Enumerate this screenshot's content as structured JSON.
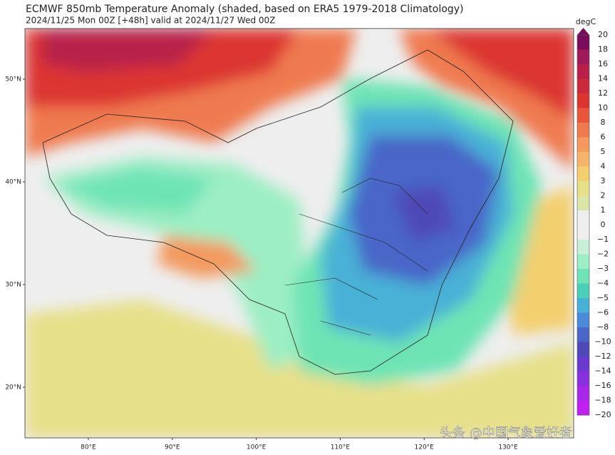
{
  "header": {
    "title": "ECMWF 850mb Temperature Anomaly (shaded, based on ERA5 1979-2018 Climatology)",
    "subtitle": "2024/11/25 Mon 00Z [+48h] valid at 2024/11/27 Wed 00Z"
  },
  "map": {
    "lat_labels": [
      "50°N",
      "40°N",
      "30°N",
      "20°N"
    ],
    "lon_labels": [
      "80°E",
      "90°E",
      "100°E",
      "110°E",
      "120°E",
      "130°E"
    ]
  },
  "colorbar": {
    "unit": "degC",
    "labels": [
      "20",
      "18",
      "16",
      "14",
      "12",
      "10",
      "8",
      "6",
      "5",
      "4",
      "3",
      "2",
      "1",
      "0",
      "−1",
      "−2",
      "−3",
      "−4",
      "−5",
      "−6",
      "−8",
      "−10",
      "−12",
      "−14",
      "−16",
      "−18",
      "−20"
    ],
    "colors": [
      "#7a0c5e",
      "#a01a5a",
      "#b8204a",
      "#cc2a3a",
      "#dc3530",
      "#e8573c",
      "#ef7a50",
      "#f39a5e",
      "#f6b36a",
      "#f3cf6e",
      "#e6e08a",
      "#d9e6a8",
      "#eeeeee",
      "#eeeeee",
      "#c8f0d8",
      "#9deec4",
      "#6ee4b4",
      "#4ccfb8",
      "#48b0d6",
      "#4a8ad8",
      "#4a66c8",
      "#5048b8",
      "#6a3ad0",
      "#8a30e0",
      "#a828ea",
      "#c020f0"
    ]
  },
  "watermark": "头条 @中国气象爱好者"
}
